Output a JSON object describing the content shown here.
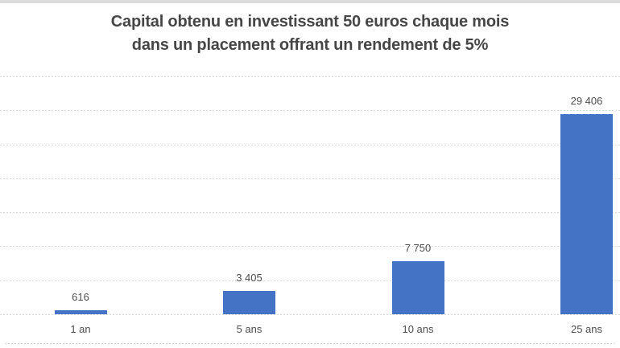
{
  "window": {
    "top_edge_color": "#dbdbdb"
  },
  "chart_data": {
    "type": "bar",
    "title": "Capital obtenu en investissant 50 euros chaque mois dans un placement offrant un rendement de 5%",
    "title_lines": [
      "Capital obtenu en investissant 50 euros chaque mois",
      "dans un placement offrant un rendement de 5%"
    ],
    "categories": [
      "1 an",
      "5 ans",
      "10 ans",
      "25 ans"
    ],
    "values": [
      616,
      3405,
      7750,
      29406
    ],
    "value_labels": [
      "616",
      "3 405",
      "7 750",
      "29 406"
    ],
    "xlabel": "",
    "ylabel": "",
    "ylim": [
      0,
      35000
    ],
    "grid_step": 5000,
    "grid": "horizontal-dashed",
    "y_tick_labels_visible": false,
    "legend": "none",
    "bar_color": "#4472c4",
    "gridline_color": "#d9d9d9",
    "text_color": "#4d4d4d"
  }
}
